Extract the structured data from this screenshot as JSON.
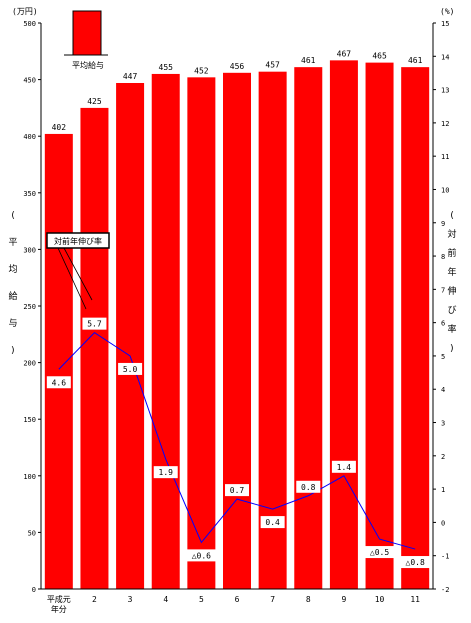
{
  "chart_data": {
    "type": "bar",
    "categories": [
      "平成元\n年分",
      "2",
      "3",
      "4",
      "5",
      "6",
      "7",
      "8",
      "9",
      "10",
      "11"
    ],
    "series": [
      {
        "name": "平均給与",
        "kind": "bar",
        "axis": "left",
        "color": "#ff0000",
        "values": [
          402,
          425,
          447,
          455,
          452,
          456,
          457,
          461,
          467,
          465,
          461
        ]
      },
      {
        "name": "対前年伸び率",
        "kind": "line",
        "axis": "right",
        "color": "#0000ff",
        "values": [
          4.6,
          5.7,
          5.0,
          1.9,
          -0.6,
          0.7,
          0.4,
          0.8,
          1.4,
          -0.5,
          -0.8
        ]
      }
    ],
    "bar_labels": [
      "402",
      "425",
      "447",
      "455",
      "452",
      "456",
      "457",
      "461",
      "467",
      "465",
      "461"
    ],
    "line_labels": [
      "4.6",
      "5.7",
      "5.0",
      "1.9",
      "△0.6",
      "0.7",
      "0.4",
      "0.8",
      "1.4",
      "△0.5",
      "△0.8"
    ],
    "y_left": {
      "unit": "(万円)",
      "label": "平均給与",
      "ylim": [
        0,
        500
      ],
      "ticks": [
        "0",
        "50",
        "100",
        "150",
        "200",
        "250",
        "300",
        "350",
        "400",
        "450",
        "500"
      ]
    },
    "y_right": {
      "unit": "(%)",
      "label": "対前年伸び率",
      "ylim": [
        -2,
        15
      ],
      "ticks": [
        "-2",
        "-1",
        "0",
        "1",
        "2",
        "3",
        "4",
        "5",
        "6",
        "7",
        "8",
        "9",
        "10",
        "11",
        "12",
        "13",
        "14",
        "15"
      ]
    },
    "legend": {
      "bar": "平均給与",
      "line": "対前年伸び率"
    },
    "grid": false
  }
}
